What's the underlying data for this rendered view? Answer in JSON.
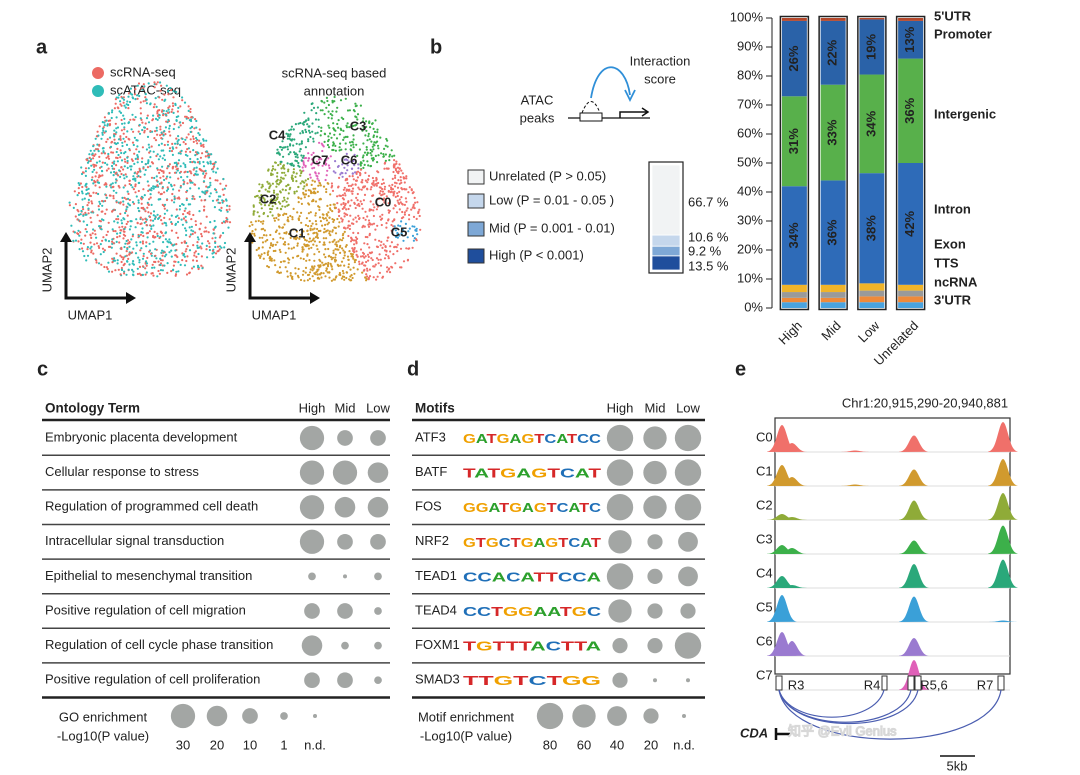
{
  "a": {
    "label": "a",
    "legend": [
      "scRNA-seq",
      "scATAC-seq"
    ],
    "colors": [
      "#ec6a63",
      "#2fbcb8"
    ],
    "annotation_title": [
      "scRNA-seq based",
      "annotation"
    ],
    "clusters": [
      "C0",
      "C1",
      "C2",
      "C3",
      "C4",
      "C5",
      "C6",
      "C7"
    ],
    "cluster_colors": [
      "#f0706a",
      "#d19a2e",
      "#8fab38",
      "#3cb04a",
      "#2aa87a",
      "#3aa0d8",
      "#9a7ad0",
      "#e060b8"
    ],
    "x_axis": "UMAP1",
    "y_axis": "UMAP2"
  },
  "b": {
    "label": "b",
    "schematic": {
      "score": [
        "Interaction",
        "score"
      ],
      "peaks": [
        "ATAC",
        "peaks"
      ]
    },
    "overall": {
      "type": "bar",
      "categories": [
        "Unrelated (P > 0.05)",
        "Low (P = 0.01 - 0.05 )",
        "Mid (P = 0.001 - 0.01)",
        "High (P < 0.001)"
      ],
      "colors": [
        "#f1f3f4",
        "#c5d7ec",
        "#7ea8d6",
        "#1f4e9c"
      ],
      "values": [
        66.7,
        10.6,
        9.2,
        13.5
      ],
      "value_labels": [
        "66.7 %",
        "10.6 %",
        "9.2 %",
        "13.5 %"
      ]
    },
    "distribution": {
      "type": "stacked-bar",
      "categories": [
        "High",
        "Mid",
        "Low",
        "Unrelated"
      ],
      "ylim": [
        0,
        100
      ],
      "yticks": [
        {
          "value": 0,
          "label": "0%"
        },
        {
          "value": 10,
          "label": "10%"
        },
        {
          "value": 20,
          "label": "20%"
        },
        {
          "value": 30,
          "label": "30%"
        },
        {
          "value": 40,
          "label": "40%"
        },
        {
          "value": 50,
          "label": "50%"
        },
        {
          "value": 60,
          "label": "60%"
        },
        {
          "value": 70,
          "label": "70%"
        },
        {
          "value": 80,
          "label": "80%"
        },
        {
          "value": 90,
          "label": "90%"
        },
        {
          "value": 100,
          "label": "100%"
        }
      ],
      "series": [
        {
          "name": "3'UTR",
          "color": "#4aa3df",
          "values": [
            2,
            2,
            2,
            2
          ]
        },
        {
          "name": "ncRNA",
          "color": "#ef8a3a",
          "values": [
            1.5,
            1.5,
            2,
            2
          ]
        },
        {
          "name": "TTS",
          "color": "#9a9a9a",
          "values": [
            2,
            2,
            2,
            2
          ]
        },
        {
          "name": "Exon",
          "color": "#f0b429",
          "values": [
            2.5,
            2.5,
            2.5,
            2
          ]
        },
        {
          "name": "Intron",
          "color": "#2e6bb8",
          "values": [
            34,
            36,
            38,
            42
          ],
          "value_labels": [
            "34%",
            "36%",
            "38%",
            "42%"
          ]
        },
        {
          "name": "Intergenic",
          "color": "#58b04b",
          "values": [
            31,
            33,
            34,
            36
          ],
          "value_labels": [
            "31%",
            "33%",
            "34%",
            "36%"
          ]
        },
        {
          "name": "Promoter",
          "color": "#2a62a8",
          "values": [
            26,
            22,
            19,
            13
          ],
          "value_labels": [
            "26%",
            "22%",
            "19%",
            "13%"
          ]
        },
        {
          "name": "5'UTR",
          "color": "#b5482b",
          "values": [
            1,
            1,
            0.5,
            1
          ]
        }
      ]
    }
  },
  "c": {
    "label": "c",
    "header": "Ontology Term",
    "columns": [
      "High",
      "Mid",
      "Low"
    ],
    "rows": [
      {
        "term": "Embryonic placenta development",
        "values": [
          30,
          10,
          10
        ]
      },
      {
        "term": "Cellular response to stress",
        "values": [
          30,
          30,
          20
        ]
      },
      {
        "term": "Regulation of programmed cell death",
        "values": [
          30,
          20,
          20
        ]
      },
      {
        "term": "Intracellular signal transduction",
        "values": [
          30,
          10,
          10
        ]
      },
      {
        "term": "Epithelial to mesenchymal transition",
        "values": [
          1,
          0,
          1
        ]
      },
      {
        "term": "Positive regulation of cell migration",
        "values": [
          10,
          10,
          1
        ]
      },
      {
        "term": "Regulation of cell cycle phase transition",
        "values": [
          20,
          1,
          1
        ]
      },
      {
        "term": "Positive regulation of cell proliferation",
        "values": [
          10,
          10,
          1
        ]
      }
    ],
    "legend": {
      "title": [
        "GO enrichment",
        "-Log10(P value)"
      ],
      "ticks": [
        30,
        20,
        10,
        1,
        {
          "value": 0,
          "label": "n.d."
        }
      ]
    }
  },
  "d": {
    "label": "d",
    "header": "Motifs",
    "columns": [
      "High",
      "Mid",
      "Low"
    ],
    "rows": [
      {
        "motif": "ATF3",
        "logo": "GATGAGTCATCC",
        "values": [
          80,
          60,
          80
        ]
      },
      {
        "motif": "BATF",
        "logo": "TATGAGTCAT",
        "values": [
          80,
          60,
          80
        ]
      },
      {
        "motif": "FOS",
        "logo": "GGATGAGTCATC",
        "values": [
          80,
          60,
          80
        ]
      },
      {
        "motif": "NRF2",
        "logo": "GTGCTGAGTCAT",
        "values": [
          60,
          20,
          40
        ]
      },
      {
        "motif": "TEAD1",
        "logo": "CCACATTCCA",
        "values": [
          80,
          20,
          40
        ]
      },
      {
        "motif": "TEAD4",
        "logo": "CCTGGAATGC",
        "values": [
          60,
          20,
          20
        ]
      },
      {
        "motif": "FOXM1",
        "logo": "TGTTTACTTA",
        "values": [
          20,
          20,
          80
        ]
      },
      {
        "motif": "SMAD3",
        "logo": "TTGTCTGG",
        "values": [
          20,
          0,
          0
        ]
      }
    ],
    "legend": {
      "title": [
        "Motif enrichment",
        "-Log10(P value)"
      ],
      "ticks": [
        80,
        60,
        40,
        20,
        {
          "value": 0,
          "label": "n.d."
        }
      ]
    }
  },
  "e": {
    "label": "e",
    "locus": "Chr1:20,915,290-20,940,881",
    "tracks": [
      {
        "name": "C0",
        "color": "#f0706a",
        "values": [
          0.9,
          0.3,
          0.05,
          0.55,
          1.0
        ]
      },
      {
        "name": "C1",
        "color": "#d19a2e",
        "values": [
          0.7,
          0.3,
          0.05,
          0.55,
          0.9
        ]
      },
      {
        "name": "C2",
        "color": "#8fab38",
        "values": [
          0.2,
          0.1,
          0,
          0.65,
          0.9
        ]
      },
      {
        "name": "C3",
        "color": "#3cb04a",
        "values": [
          0.3,
          0.2,
          0,
          0.45,
          0.95
        ]
      },
      {
        "name": "C4",
        "color": "#2aa87a",
        "values": [
          0.4,
          0.1,
          0,
          0.8,
          0.95
        ]
      },
      {
        "name": "C5",
        "color": "#3aa0d8",
        "values": [
          0.9,
          0,
          0,
          0.85,
          0.05
        ]
      },
      {
        "name": "C6",
        "color": "#9a7ad0",
        "values": [
          0.8,
          0.5,
          0,
          0.6,
          0
        ]
      },
      {
        "name": "C7",
        "color": "#e060b8",
        "values": [
          0,
          0,
          0,
          1.0,
          0
        ]
      }
    ],
    "regions": [
      "R3",
      "R4",
      "R5,6",
      "R7"
    ],
    "gene": "CDA",
    "scale": "5kb"
  },
  "watermark": "知乎 @Evil Genius"
}
